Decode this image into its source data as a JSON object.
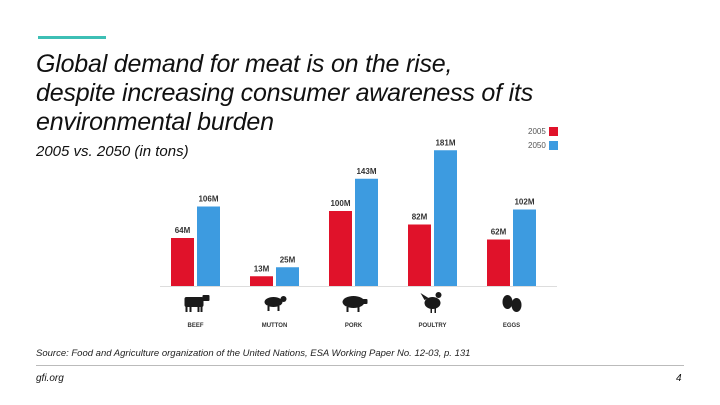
{
  "slide": {
    "title_line1": "Global demand for meat is on the rise,",
    "title_emph": "despite",
    "title_line2_rest": " increasing consumer awareness of its",
    "title_line3": "environmental burden",
    "subtitle": "2005 vs. 2050 (in tons)",
    "source": "Source: Food and Agriculture organization of the United Nations, ESA Working Paper No. 12-03, p. 131",
    "footer_site": "gfi.org",
    "page_number": "4"
  },
  "colors": {
    "accent": "#3dbfb5",
    "series_2005": "#e0122a",
    "series_2050": "#3d9be0",
    "icon": "#1a1a1a"
  },
  "chart_data": {
    "type": "bar",
    "title": "Global demand for meat is on the rise, despite increasing consumer awareness of its environmental burden",
    "subtitle": "2005 vs. 2050 (in tons)",
    "categories": [
      "BEEF",
      "MUTTON",
      "PORK",
      "POULTRY",
      "EGGS"
    ],
    "icons": [
      "cow-icon",
      "sheep-icon",
      "pig-icon",
      "chicken-icon",
      "eggs-icon"
    ],
    "series": [
      {
        "name": "2005",
        "values": [
          64,
          13,
          100,
          82,
          62
        ],
        "labels": [
          "64M",
          "13M",
          "100M",
          "82M",
          "62M"
        ]
      },
      {
        "name": "2050",
        "values": [
          106,
          25,
          143,
          181,
          102
        ],
        "labels": [
          "106M",
          "25M",
          "143M",
          "181M",
          "102M"
        ]
      }
    ],
    "unit": "M",
    "ylim": [
      0,
      200
    ],
    "legend_position": "top-right",
    "grid": false
  }
}
